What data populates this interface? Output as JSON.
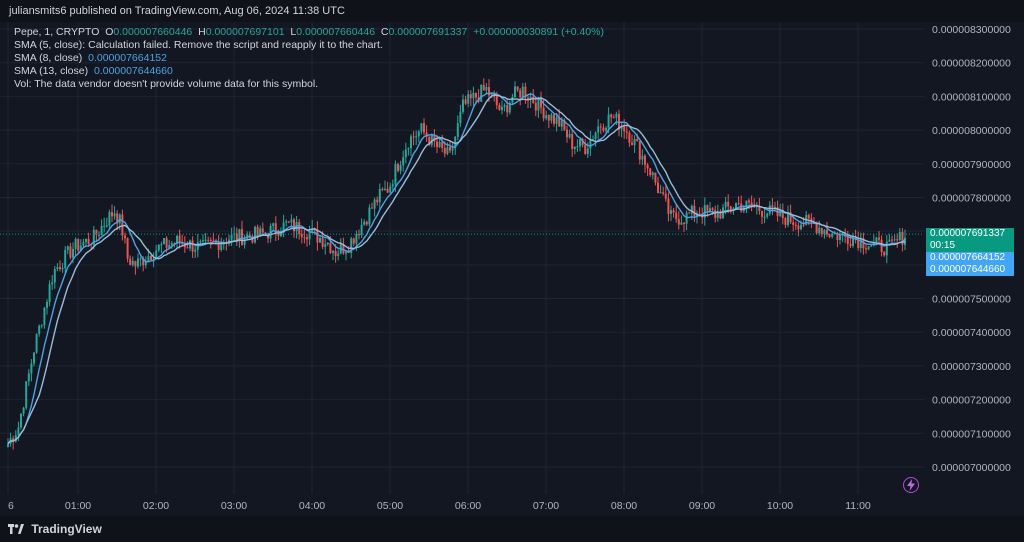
{
  "header": {
    "publisher": "juliansmits6 published on TradingView.com, Aug 06, 2024 11:38 UTC"
  },
  "legend": {
    "symbol": "Pepe, 1, CRYPTO",
    "o_label": "O",
    "o_value": "0.000007660446",
    "h_label": "H",
    "h_value": "0.000007697101",
    "l_label": "L",
    "l_value": "0.000007660446",
    "c_label": "C",
    "c_value": "0.000007691337",
    "change": "+0.000000030891 (+0.40%)",
    "sma5": "SMA (5, close): Calculation failed. Remove the script and reapply it to the chart.",
    "sma8_label": "SMA (8, close)",
    "sma8_value": "0.000007664152",
    "sma13_label": "SMA (13, close)",
    "sma13_value": "0.000007644660",
    "vol": "Vol: The data vendor doesn't provide volume data for this symbol."
  },
  "price_tags": {
    "last": "0.000007691337",
    "countdown": "00:15",
    "sma8": "0.000007664152",
    "sma13": "0.000007644660"
  },
  "footer": {
    "brand": "TradingView"
  },
  "colors": {
    "up": "#26a69a",
    "down": "#ef5350",
    "sma8": "#4ba3e3",
    "sma13": "#9bbcd6",
    "text": "#d1d4dc",
    "last_tag": "#089981",
    "tag_blue": "#42a5f5",
    "grid": "#1f2433"
  },
  "icons": {
    "bolt": "lightning-icon",
    "logo": "tradingview-logo-icon"
  },
  "chart_data": {
    "type": "candlestick",
    "title": "Pepe, 1, CRYPTO",
    "y_ticks": [
      "0.000008300000",
      "0.000008200000",
      "0.000008100000",
      "0.000008000000",
      "0.000007900000",
      "0.000007800000",
      "0.000007500000",
      "0.000007400000",
      "0.000007300000",
      "0.000007200000",
      "0.000007100000",
      "0.000007000000"
    ],
    "x_ticks": [
      "6",
      "01:00",
      "02:00",
      "03:00",
      "04:00",
      "05:00",
      "06:00",
      "07:00",
      "08:00",
      "09:00",
      "10:00",
      "11:00"
    ],
    "ylim": [
      6.9e-06,
      8.36e-06
    ],
    "x_range_minutes": [
      0,
      690
    ],
    "last_price": 7.691337e-06,
    "close_path_points": [
      [
        0,
        7.07
      ],
      [
        8,
        7.12
      ],
      [
        20,
        7.35
      ],
      [
        35,
        7.58
      ],
      [
        50,
        7.65
      ],
      [
        66,
        7.68
      ],
      [
        75,
        7.73
      ],
      [
        82,
        7.76
      ],
      [
        87,
        7.72
      ],
      [
        92,
        7.62
      ],
      [
        98,
        7.6
      ],
      [
        105,
        7.62
      ],
      [
        115,
        7.65
      ],
      [
        130,
        7.67
      ],
      [
        150,
        7.65
      ],
      [
        170,
        7.68
      ],
      [
        195,
        7.69
      ],
      [
        215,
        7.72
      ],
      [
        230,
        7.7
      ],
      [
        245,
        7.67
      ],
      [
        252,
        7.64
      ],
      [
        262,
        7.66
      ],
      [
        272,
        7.72
      ],
      [
        285,
        7.8
      ],
      [
        293,
        7.83
      ],
      [
        300,
        7.9
      ],
      [
        308,
        7.97
      ],
      [
        318,
        8.0
      ],
      [
        330,
        7.95
      ],
      [
        340,
        7.92
      ],
      [
        350,
        8.07
      ],
      [
        360,
        8.1
      ],
      [
        368,
        8.12
      ],
      [
        375,
        8.08
      ],
      [
        380,
        8.05
      ],
      [
        388,
        8.1
      ],
      [
        396,
        8.12
      ],
      [
        404,
        8.09
      ],
      [
        414,
        8.05
      ],
      [
        424,
        8.02
      ],
      [
        434,
        7.96
      ],
      [
        444,
        7.95
      ],
      [
        454,
        8.01
      ],
      [
        464,
        8.04
      ],
      [
        474,
        8.01
      ],
      [
        484,
        7.95
      ],
      [
        494,
        7.88
      ],
      [
        503,
        7.8
      ],
      [
        510,
        7.74
      ],
      [
        520,
        7.74
      ],
      [
        530,
        7.76
      ],
      [
        545,
        7.75
      ],
      [
        560,
        7.78
      ],
      [
        575,
        7.77
      ],
      [
        590,
        7.75
      ],
      [
        605,
        7.73
      ],
      [
        620,
        7.72
      ],
      [
        635,
        7.69
      ],
      [
        650,
        7.68
      ],
      [
        665,
        7.66
      ],
      [
        678,
        7.65
      ],
      [
        690,
        7.69
      ]
    ],
    "sma_series": [
      {
        "name": "SMA (8, close)"
      },
      {
        "name": "SMA (13, close)"
      }
    ]
  }
}
